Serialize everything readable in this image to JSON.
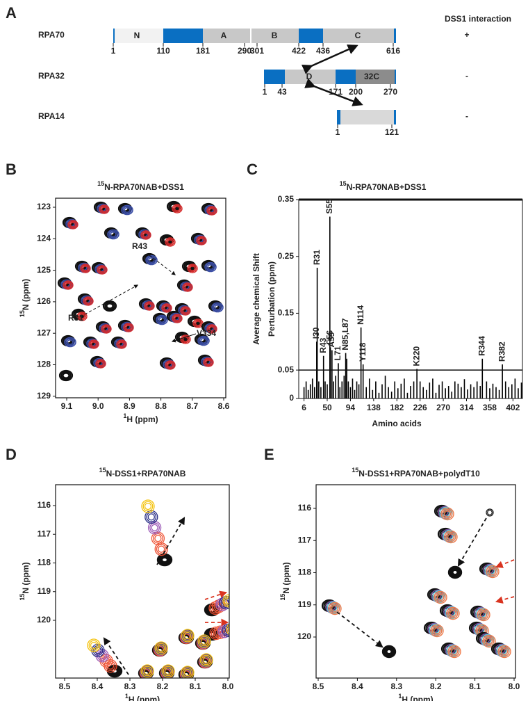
{
  "panel_a": {
    "label": "A",
    "heading": "DSS1 interaction",
    "proteins": [
      {
        "name": "RPA70",
        "interaction": "+",
        "domains": [
          "N",
          "A",
          "B",
          "C"
        ],
        "boundaries": [
          1,
          110,
          181,
          290,
          301,
          422,
          436,
          616
        ]
      },
      {
        "name": "RPA32",
        "interaction": "-",
        "domains": [
          "D",
          "32C"
        ],
        "boundaries": [
          1,
          43,
          171,
          200,
          270
        ]
      },
      {
        "name": "RPA14",
        "interaction": "-",
        "domains": [],
        "boundaries": [
          1,
          121
        ]
      }
    ]
  },
  "panel_b": {
    "label": "B",
    "title": {
      "sup": "15",
      "text": "N-RPA70NAB+DSS1"
    },
    "ylabel": {
      "sup": "15",
      "text": "N (ppm)"
    },
    "xlabel": {
      "sup": "1",
      "text": "H (ppm)"
    },
    "yticks": [
      "123",
      "124",
      "125",
      "126",
      "127",
      "128",
      "129"
    ],
    "xticks": [
      "9.1",
      "9.0",
      "8.9",
      "8.8",
      "8.7",
      "8.6"
    ],
    "annotations": [
      "R43",
      "R31",
      "V334"
    ]
  },
  "chart_data": {
    "type": "bar",
    "panel_label": "C",
    "title": {
      "sup": "15",
      "text": "N-RPA70NAB+DSS1"
    },
    "ylabel": [
      "Average chemical Shift",
      "Perturbation (ppm)"
    ],
    "xlabel": "Amino acids",
    "x": [
      6,
      10,
      14,
      18,
      22,
      26,
      30,
      31,
      34,
      38,
      43,
      46,
      50,
      55,
      56,
      59,
      62,
      66,
      71,
      74,
      78,
      82,
      85,
      87,
      90,
      94,
      98,
      102,
      106,
      110,
      114,
      118,
      124,
      130,
      136,
      142,
      148,
      154,
      160,
      166,
      172,
      178,
      184,
      190,
      196,
      202,
      208,
      214,
      220,
      226,
      232,
      238,
      244,
      250,
      256,
      262,
      268,
      274,
      280,
      286,
      292,
      298,
      304,
      310,
      316,
      322,
      328,
      334,
      340,
      344,
      352,
      358,
      364,
      370,
      376,
      382,
      388,
      394,
      400,
      406,
      412,
      418
    ],
    "values": [
      0.02,
      0.03,
      0.015,
      0.025,
      0.035,
      0.02,
      0.1,
      0.23,
      0.03,
      0.02,
      0.075,
      0.03,
      0.025,
      0.32,
      0.09,
      0.085,
      0.03,
      0.04,
      0.062,
      0.02,
      0.03,
      0.04,
      0.08,
      0.07,
      0.03,
      0.02,
      0.035,
      0.015,
      0.03,
      0.025,
      0.125,
      0.06,
      0.02,
      0.035,
      0.015,
      0.03,
      0.01,
      0.025,
      0.04,
      0.02,
      0.012,
      0.03,
      0.018,
      0.026,
      0.035,
      0.01,
      0.022,
      0.03,
      0.052,
      0.03,
      0.02,
      0.015,
      0.028,
      0.035,
      0.01,
      0.024,
      0.03,
      0.018,
      0.022,
      0.012,
      0.03,
      0.026,
      0.02,
      0.034,
      0.016,
      0.025,
      0.02,
      0.03,
      0.022,
      0.07,
      0.03,
      0.018,
      0.026,
      0.02,
      0.015,
      0.06,
      0.03,
      0.02,
      0.025,
      0.035,
      0.018,
      0.028
    ],
    "annotations": [
      {
        "text": "I30",
        "x": 30
      },
      {
        "text": "R31",
        "x": 31
      },
      {
        "text": "R43",
        "x": 43
      },
      {
        "text": "S55",
        "x": 55
      },
      {
        "text": "F56",
        "x": 56
      },
      {
        "text": "A59",
        "x": 59
      },
      {
        "text": "L71",
        "x": 71
      },
      {
        "text": "N85,L87",
        "x": 85
      },
      {
        "text": "N114",
        "x": 114
      },
      {
        "text": "Y118",
        "x": 118
      },
      {
        "text": "K220",
        "x": 220
      },
      {
        "text": "R344",
        "x": 344
      },
      {
        "text": "R382",
        "x": 382
      }
    ],
    "threshold": 0.05,
    "xlim": [
      -4,
      420
    ],
    "ylim": [
      0,
      0.35
    ],
    "xticks": [
      6,
      50,
      94,
      138,
      182,
      226,
      270,
      314,
      358,
      402
    ],
    "yticks": [
      0,
      0.05,
      0.15,
      0.25,
      0.35
    ],
    "color": "#000000"
  },
  "panel_d": {
    "label": "D",
    "title": {
      "sup": "15",
      "text": "N-DSS1+RPA70NAB"
    },
    "ylabel": {
      "sup": "15",
      "text": "N (ppm)"
    },
    "xlabel": {
      "sup": "1",
      "text": "H (ppm)"
    },
    "yticks": [
      "116",
      "117",
      "118",
      "119",
      "120"
    ],
    "xticks": [
      "8.5",
      "8.4",
      "8.3",
      "8.2",
      "8.1",
      "8.0"
    ]
  },
  "panel_e": {
    "label": "E",
    "title": {
      "sup": "15",
      "text": "N-DSS1+RPA70NAB+polydT10"
    },
    "ylabel": {
      "sup": "15",
      "text": "N (ppm)"
    },
    "xlabel": {
      "sup": "1",
      "text": "H (ppm)"
    },
    "yticks": [
      "116",
      "117",
      "118",
      "119",
      "120"
    ],
    "xticks": [
      "8.5",
      "8.4",
      "8.3",
      "8.2",
      "8.1",
      "8.0"
    ]
  }
}
